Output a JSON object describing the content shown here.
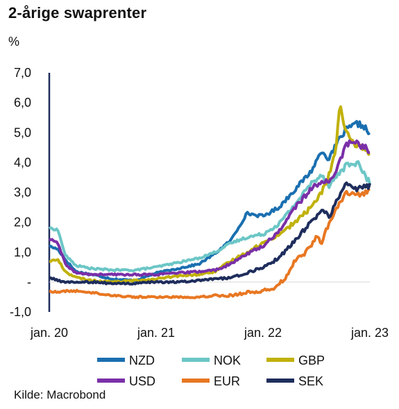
{
  "title": "2-årige swaprenter",
  "unit": "%",
  "source": "Kilde: Macrobond",
  "chart_data": {
    "type": "line",
    "title": "2-årige swaprenter",
    "ylabel": "%",
    "ylim": [
      -1.0,
      7.0
    ],
    "yticks": [
      {
        "v": 7,
        "label": "7,0"
      },
      {
        "v": 6,
        "label": "6,0"
      },
      {
        "v": 5,
        "label": "5,0"
      },
      {
        "v": 4,
        "label": "4,0"
      },
      {
        "v": 3,
        "label": "3,0"
      },
      {
        "v": 2,
        "label": "2,0"
      },
      {
        "v": 1,
        "label": "1,0"
      },
      {
        "v": 0,
        "label": "-"
      },
      {
        "v": -1,
        "label": "-1,0"
      }
    ],
    "xlim": [
      2020.0,
      2023.0
    ],
    "xticks": [
      {
        "v": 2020.0,
        "label": "jan. 20"
      },
      {
        "v": 2021.0,
        "label": "jan. 21"
      },
      {
        "v": 2022.0,
        "label": "jan. 22"
      },
      {
        "v": 2023.0,
        "label": "jan. 23"
      }
    ],
    "grid": false,
    "legend_position": "bottom",
    "series": [
      {
        "name": "NZD",
        "color": "#1a6fb0",
        "points": [
          [
            2020.0,
            1.2
          ],
          [
            2020.08,
            1.1
          ],
          [
            2020.15,
            0.75
          ],
          [
            2020.25,
            0.35
          ],
          [
            2020.4,
            0.25
          ],
          [
            2020.6,
            0.1
          ],
          [
            2020.8,
            0.05
          ],
          [
            2021.0,
            0.3
          ],
          [
            2021.2,
            0.45
          ],
          [
            2021.4,
            0.6
          ],
          [
            2021.55,
            0.95
          ],
          [
            2021.7,
            1.4
          ],
          [
            2021.85,
            2.3
          ],
          [
            2022.0,
            2.2
          ],
          [
            2022.15,
            2.5
          ],
          [
            2022.3,
            3.1
          ],
          [
            2022.45,
            3.7
          ],
          [
            2022.55,
            4.4
          ],
          [
            2022.62,
            4.1
          ],
          [
            2022.7,
            4.7
          ],
          [
            2022.78,
            5.1
          ],
          [
            2022.88,
            5.3
          ],
          [
            2022.95,
            5.2
          ],
          [
            2023.0,
            4.9
          ]
        ]
      },
      {
        "name": "NOK",
        "color": "#6cc6c6",
        "points": [
          [
            2020.0,
            1.8
          ],
          [
            2020.08,
            1.75
          ],
          [
            2020.15,
            0.9
          ],
          [
            2020.25,
            0.55
          ],
          [
            2020.4,
            0.45
          ],
          [
            2020.6,
            0.4
          ],
          [
            2020.8,
            0.4
          ],
          [
            2021.0,
            0.5
          ],
          [
            2021.2,
            0.65
          ],
          [
            2021.4,
            0.8
          ],
          [
            2021.55,
            1.0
          ],
          [
            2021.7,
            1.3
          ],
          [
            2021.85,
            1.5
          ],
          [
            2022.0,
            1.6
          ],
          [
            2022.15,
            1.95
          ],
          [
            2022.3,
            2.6
          ],
          [
            2022.45,
            3.3
          ],
          [
            2022.55,
            3.6
          ],
          [
            2022.62,
            3.2
          ],
          [
            2022.7,
            3.6
          ],
          [
            2022.78,
            3.9
          ],
          [
            2022.88,
            4.0
          ],
          [
            2022.95,
            3.6
          ],
          [
            2023.0,
            3.3
          ]
        ]
      },
      {
        "name": "GBP",
        "color": "#c1b10a",
        "points": [
          [
            2020.0,
            0.7
          ],
          [
            2020.08,
            0.75
          ],
          [
            2020.15,
            0.35
          ],
          [
            2020.25,
            0.15
          ],
          [
            2020.4,
            0.05
          ],
          [
            2020.6,
            0.0
          ],
          [
            2020.8,
            0.05
          ],
          [
            2021.0,
            0.1
          ],
          [
            2021.2,
            0.2
          ],
          [
            2021.4,
            0.25
          ],
          [
            2021.55,
            0.35
          ],
          [
            2021.7,
            0.7
          ],
          [
            2021.85,
            1.0
          ],
          [
            2022.0,
            1.3
          ],
          [
            2022.15,
            1.6
          ],
          [
            2022.3,
            2.0
          ],
          [
            2022.45,
            2.5
          ],
          [
            2022.55,
            3.0
          ],
          [
            2022.62,
            3.6
          ],
          [
            2022.68,
            4.4
          ],
          [
            2022.72,
            6.0
          ],
          [
            2022.76,
            5.1
          ],
          [
            2022.85,
            4.6
          ],
          [
            2022.95,
            4.5
          ],
          [
            2023.0,
            4.2
          ]
        ]
      },
      {
        "name": "USD",
        "color": "#7a2fa8",
        "points": [
          [
            2020.0,
            1.45
          ],
          [
            2020.08,
            1.3
          ],
          [
            2020.15,
            0.6
          ],
          [
            2020.25,
            0.3
          ],
          [
            2020.4,
            0.25
          ],
          [
            2020.6,
            0.25
          ],
          [
            2020.8,
            0.25
          ],
          [
            2021.0,
            0.25
          ],
          [
            2021.2,
            0.3
          ],
          [
            2021.4,
            0.35
          ],
          [
            2021.55,
            0.4
          ],
          [
            2021.7,
            0.6
          ],
          [
            2021.85,
            0.95
          ],
          [
            2022.0,
            1.2
          ],
          [
            2022.15,
            1.7
          ],
          [
            2022.3,
            2.5
          ],
          [
            2022.45,
            3.1
          ],
          [
            2022.55,
            3.4
          ],
          [
            2022.62,
            3.3
          ],
          [
            2022.7,
            3.9
          ],
          [
            2022.78,
            4.6
          ],
          [
            2022.85,
            4.7
          ],
          [
            2022.95,
            4.5
          ],
          [
            2023.0,
            4.4
          ]
        ]
      },
      {
        "name": "EUR",
        "color": "#e87722",
        "points": [
          [
            2020.0,
            -0.3
          ],
          [
            2020.08,
            -0.35
          ],
          [
            2020.15,
            -0.3
          ],
          [
            2020.25,
            -0.3
          ],
          [
            2020.4,
            -0.35
          ],
          [
            2020.6,
            -0.45
          ],
          [
            2020.8,
            -0.5
          ],
          [
            2021.0,
            -0.5
          ],
          [
            2021.2,
            -0.5
          ],
          [
            2021.4,
            -0.5
          ],
          [
            2021.55,
            -0.45
          ],
          [
            2021.7,
            -0.45
          ],
          [
            2021.85,
            -0.35
          ],
          [
            2022.0,
            -0.3
          ],
          [
            2022.1,
            -0.2
          ],
          [
            2022.2,
            0.1
          ],
          [
            2022.3,
            0.7
          ],
          [
            2022.4,
            1.0
          ],
          [
            2022.5,
            1.5
          ],
          [
            2022.55,
            1.3
          ],
          [
            2022.62,
            2.0
          ],
          [
            2022.7,
            2.5
          ],
          [
            2022.78,
            3.0
          ],
          [
            2022.85,
            2.9
          ],
          [
            2022.95,
            3.0
          ],
          [
            2023.0,
            3.1
          ]
        ]
      },
      {
        "name": "SEK",
        "color": "#1e2d5c",
        "points": [
          [
            2020.0,
            0.15
          ],
          [
            2020.08,
            0.05
          ],
          [
            2020.15,
            0.0
          ],
          [
            2020.25,
            0.0
          ],
          [
            2020.4,
            0.0
          ],
          [
            2020.6,
            -0.05
          ],
          [
            2020.8,
            -0.05
          ],
          [
            2021.0,
            0.0
          ],
          [
            2021.2,
            0.0
          ],
          [
            2021.4,
            0.05
          ],
          [
            2021.55,
            0.1
          ],
          [
            2021.7,
            0.15
          ],
          [
            2021.85,
            0.3
          ],
          [
            2022.0,
            0.5
          ],
          [
            2022.15,
            0.8
          ],
          [
            2022.3,
            1.4
          ],
          [
            2022.45,
            2.0
          ],
          [
            2022.55,
            2.4
          ],
          [
            2022.62,
            2.2
          ],
          [
            2022.7,
            2.8
          ],
          [
            2022.78,
            3.3
          ],
          [
            2022.88,
            3.1
          ],
          [
            2022.95,
            3.2
          ],
          [
            2023.0,
            3.2
          ]
        ]
      }
    ]
  }
}
